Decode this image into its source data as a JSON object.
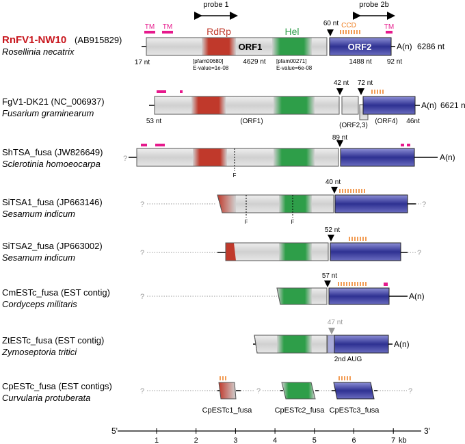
{
  "probes": {
    "probe1": "probe 1",
    "probe2b": "probe 2b"
  },
  "domains": {
    "rdrp": "RdRp",
    "hel": "Hel",
    "tm": "TM",
    "ccd": "CCD"
  },
  "polya": "A(n)",
  "unknown": "?",
  "frameshift": "F",
  "colors": {
    "rdrp": "#c0392b",
    "hel": "#2e9e49",
    "orf2": "#2e3192",
    "pink": "#e6198c",
    "orange": "#ee7a1a",
    "gray": "#999999"
  },
  "rows": {
    "rnfv1": {
      "name": "RnFV1-NW10",
      "acc": "(AB915829)",
      "species": "Rosellinia necatrix",
      "length": "6286 nt",
      "orf1": "ORF1",
      "orf2": "ORF2",
      "pfam1": "[pfam00680]",
      "eval1": "E-value=1e-08",
      "pfam2": "[pfam00271]",
      "eval2": "E-value=6e-08",
      "utr5": "17 nt",
      "orf1len": "4629 nt",
      "gap": "60 nt",
      "orf2len": "1488 nt",
      "utr3": "92 nt"
    },
    "fgv1": {
      "title": "FgV1-DK21 (NC_006937)",
      "species": "Fusarium graminearum",
      "length": "6621 nt",
      "utr5": "53 nt",
      "orf1": "(ORF1)",
      "orf23": "(ORF2,3)",
      "orf4": "(ORF4)",
      "utr3": "46nt",
      "gap1": "42 nt",
      "gap2": "72 nt"
    },
    "shtsa": {
      "title": "ShTSA_fusa (JW826649)",
      "species": "Sclerotinia homoeocarpa",
      "gap": "89 nt"
    },
    "sitsa1": {
      "title": "SiTSA1_fusa (JP663146)",
      "species": "Sesamum indicum",
      "gap": "40 nt"
    },
    "sitsa2": {
      "title": "SiTSA2_fusa (JP663002)",
      "species": "Sesamum indicum",
      "gap": "52 nt"
    },
    "cmest": {
      "title": "CmESTc_fusa (EST contig)",
      "species": "Cordyceps militaris",
      "gap": "57 nt"
    },
    "ztest": {
      "title": "ZtESTc_fusa (EST contig)",
      "species": "Zymoseptoria tritici",
      "gap": "47 nt",
      "aug": "2nd AUG"
    },
    "cpest": {
      "title": "CpESTc_fusa (EST contigs)",
      "species": "Curvularia protuberata",
      "c1": "CpESTc1_fusa",
      "c2": "CpESTc2_fusa",
      "c3": "CpESTc3_fusa"
    }
  },
  "axis": {
    "left_end": "5'",
    "right_end": "3'",
    "ticks": [
      "1",
      "2",
      "3",
      "4",
      "5",
      "6",
      "7"
    ],
    "unit": "kb"
  }
}
